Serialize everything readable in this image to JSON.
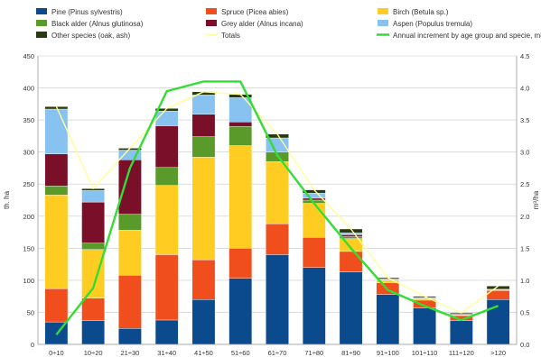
{
  "chart_data": {
    "type": "bar",
    "stacked": true,
    "categories": [
      "0÷10",
      "10÷20",
      "21÷30",
      "31÷40",
      "41÷50",
      "51÷60",
      "61÷70",
      "71÷80",
      "81÷90",
      "91÷100",
      "101÷110",
      "111÷120",
      ">120"
    ],
    "ylabel": "th. ha",
    "y2label": "m³/ha",
    "ylim": [
      0,
      450
    ],
    "y2lim": [
      0,
      4.5
    ],
    "yticks": [
      0,
      50,
      100,
      150,
      200,
      250,
      300,
      350,
      400,
      450
    ],
    "y2ticks": [
      "0.0",
      "0.5",
      "1.0",
      "1.5",
      "2.0",
      "2.5",
      "3.0",
      "3.5",
      "4.0",
      "4.5"
    ],
    "grid": true,
    "legend_position": "top",
    "series": [
      {
        "name": "Pine (Pinus sylvestris)",
        "color": "#0b4a8c",
        "values": [
          35,
          37,
          25,
          38,
          70,
          103,
          140,
          120,
          113,
          78,
          57,
          37,
          70
        ]
      },
      {
        "name": "Spruce (Picea abies)",
        "color": "#f04e1c",
        "values": [
          52,
          35,
          83,
          102,
          62,
          47,
          48,
          47,
          32,
          18,
          12,
          8,
          14
        ]
      },
      {
        "name": "Birch (Betula sp.)",
        "color": "#ffcc22",
        "values": [
          146,
          76,
          70,
          108,
          160,
          160,
          97,
          53,
          20,
          3,
          2,
          1,
          1
        ]
      },
      {
        "name": "Black alder (Alnus glutinosa)",
        "color": "#5a9a2a",
        "values": [
          14,
          10,
          25,
          28,
          32,
          30,
          15,
          5,
          3,
          1,
          1,
          0,
          0
        ]
      },
      {
        "name": "Grey alder (Alnus incana)",
        "color": "#7a0f2a",
        "values": [
          50,
          64,
          85,
          65,
          35,
          7,
          0,
          3,
          3,
          1,
          0,
          0,
          0
        ]
      },
      {
        "name": "Aspen (Populus tremula)",
        "color": "#88c2f0",
        "values": [
          70,
          18,
          15,
          23,
          30,
          38,
          22,
          8,
          3,
          1,
          1,
          1,
          1
        ]
      },
      {
        "name": "Other species (oak, ash)",
        "color": "#2a3a10",
        "values": [
          4,
          3,
          3,
          4,
          5,
          5,
          6,
          5,
          6,
          2,
          2,
          2,
          5
        ]
      }
    ],
    "line_series": [
      {
        "name": "Totals",
        "color": "#ffff99",
        "axis": "left",
        "values": [
          371,
          243,
          306,
          368,
          394,
          390,
          328,
          241,
          180,
          104,
          75,
          49,
          91
        ]
      },
      {
        "name": "Annual increment by age group and specie, mill.m³",
        "color": "#33dd33",
        "axis": "right",
        "values": [
          0.15,
          0.88,
          2.75,
          3.95,
          4.1,
          4.1,
          2.95,
          2.2,
          1.5,
          0.85,
          0.6,
          0.38,
          0.6
        ]
      }
    ]
  }
}
